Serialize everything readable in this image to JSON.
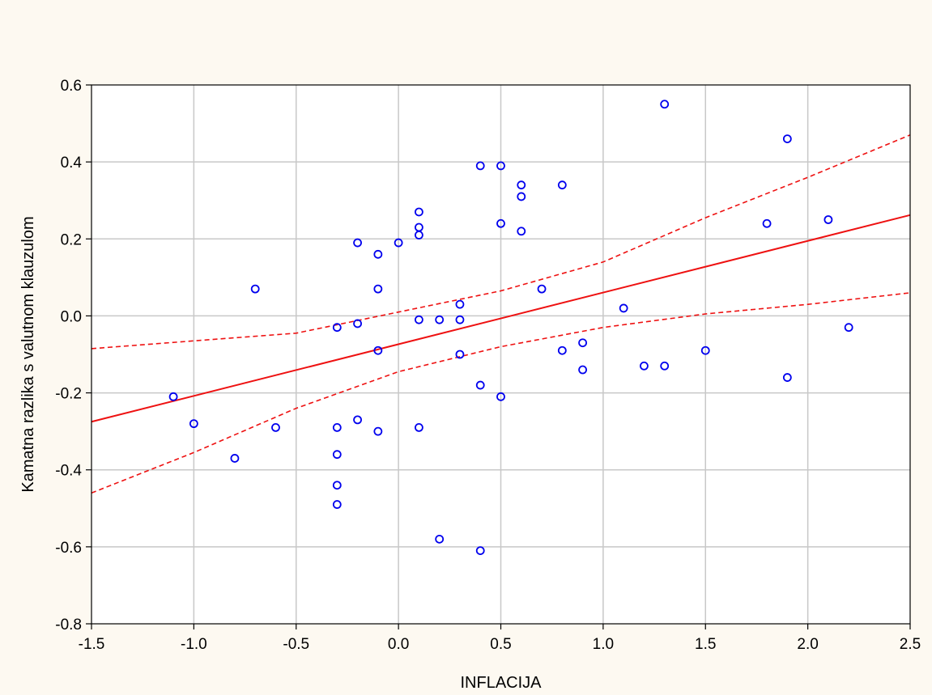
{
  "chart_data": {
    "type": "scatter",
    "title": "",
    "xlabel": "INFLACIJA",
    "ylabel": "Kamatna razlika s valutnom klauzulom",
    "xlim": [
      -1.5,
      2.5
    ],
    "ylim": [
      -0.8,
      0.6
    ],
    "xticks": [
      "-1.5",
      "-1.0",
      "-0.5",
      "0.0",
      "0.5",
      "1.0",
      "1.5",
      "2.0",
      "2.5"
    ],
    "yticks": [
      "-0.8",
      "-0.6",
      "-0.4",
      "-0.2",
      "0.0",
      "0.2",
      "0.4",
      "0.6"
    ],
    "grid": true,
    "points": [
      {
        "x": -1.1,
        "y": -0.21
      },
      {
        "x": -1.0,
        "y": -0.28
      },
      {
        "x": -0.8,
        "y": -0.37
      },
      {
        "x": -0.7,
        "y": 0.07
      },
      {
        "x": -0.6,
        "y": -0.29
      },
      {
        "x": -0.3,
        "y": -0.03
      },
      {
        "x": -0.3,
        "y": -0.29
      },
      {
        "x": -0.3,
        "y": -0.36
      },
      {
        "x": -0.3,
        "y": -0.44
      },
      {
        "x": -0.3,
        "y": -0.49
      },
      {
        "x": -0.2,
        "y": 0.19
      },
      {
        "x": -0.2,
        "y": -0.02
      },
      {
        "x": -0.2,
        "y": -0.27
      },
      {
        "x": -0.1,
        "y": 0.16
      },
      {
        "x": -0.1,
        "y": 0.07
      },
      {
        "x": -0.1,
        "y": -0.09
      },
      {
        "x": -0.1,
        "y": -0.3
      },
      {
        "x": 0.0,
        "y": 0.19
      },
      {
        "x": 0.1,
        "y": 0.27
      },
      {
        "x": 0.1,
        "y": 0.23
      },
      {
        "x": 0.1,
        "y": 0.21
      },
      {
        "x": 0.1,
        "y": -0.01
      },
      {
        "x": 0.1,
        "y": -0.29
      },
      {
        "x": 0.2,
        "y": -0.01
      },
      {
        "x": 0.2,
        "y": -0.58
      },
      {
        "x": 0.3,
        "y": 0.03
      },
      {
        "x": 0.3,
        "y": -0.01
      },
      {
        "x": 0.3,
        "y": -0.1
      },
      {
        "x": 0.4,
        "y": 0.39
      },
      {
        "x": 0.4,
        "y": -0.18
      },
      {
        "x": 0.4,
        "y": -0.61
      },
      {
        "x": 0.5,
        "y": 0.39
      },
      {
        "x": 0.5,
        "y": 0.24
      },
      {
        "x": 0.5,
        "y": -0.21
      },
      {
        "x": 0.6,
        "y": 0.34
      },
      {
        "x": 0.6,
        "y": 0.31
      },
      {
        "x": 0.6,
        "y": 0.22
      },
      {
        "x": 0.7,
        "y": 0.07
      },
      {
        "x": 0.8,
        "y": 0.34
      },
      {
        "x": 0.8,
        "y": -0.09
      },
      {
        "x": 0.9,
        "y": -0.07
      },
      {
        "x": 0.9,
        "y": -0.14
      },
      {
        "x": 1.1,
        "y": 0.02
      },
      {
        "x": 1.2,
        "y": -0.13
      },
      {
        "x": 1.3,
        "y": 0.55
      },
      {
        "x": 1.3,
        "y": -0.13
      },
      {
        "x": 1.5,
        "y": -0.09
      },
      {
        "x": 1.8,
        "y": 0.24
      },
      {
        "x": 1.9,
        "y": 0.46
      },
      {
        "x": 1.9,
        "y": -0.16
      },
      {
        "x": 2.1,
        "y": 0.25
      },
      {
        "x": 2.2,
        "y": -0.03
      }
    ],
    "regression_line": {
      "x": [
        -1.5,
        2.5
      ],
      "y": [
        -0.275,
        0.262
      ]
    },
    "confidence_band_upper": {
      "x": [
        -1.5,
        -1.0,
        -0.5,
        0.0,
        0.5,
        1.0,
        1.5,
        2.0,
        2.5
      ],
      "y": [
        -0.085,
        -0.065,
        -0.045,
        0.01,
        0.065,
        0.14,
        0.255,
        0.36,
        0.47
      ]
    },
    "confidence_band_lower": {
      "x": [
        -1.5,
        -1.0,
        -0.5,
        0.0,
        0.5,
        1.0,
        1.5,
        2.0,
        2.5
      ],
      "y": [
        -0.46,
        -0.355,
        -0.24,
        -0.145,
        -0.08,
        -0.03,
        0.005,
        0.03,
        0.06
      ]
    },
    "colors": {
      "points": "#0000ee",
      "regression": "#ee1111",
      "grid": "#c8c8c8",
      "plot_background": "#ffffff",
      "page_background": "#fdf9f1"
    }
  }
}
